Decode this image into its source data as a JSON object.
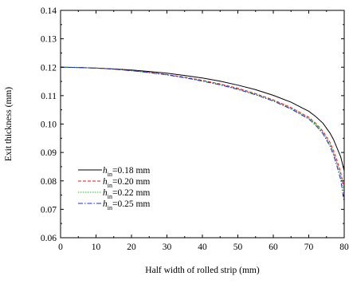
{
  "chart_data": {
    "type": "line",
    "xlabel": "Half width of rolled strip (mm)",
    "ylabel": "Exit thickness (mm)",
    "xlim": [
      0,
      80
    ],
    "ylim": [
      0.06,
      0.14
    ],
    "x_ticks": [
      "0",
      "10",
      "20",
      "30",
      "40",
      "50",
      "60",
      "70",
      "80"
    ],
    "y_ticks": [
      "0.06",
      "0.07",
      "0.08",
      "0.09",
      "0.10",
      "0.11",
      "0.12",
      "0.13",
      "0.14"
    ],
    "grid": false,
    "legend_position": "lower-left",
    "series": [
      {
        "name": "h_in=0.18 mm",
        "legend_var": "h",
        "legend_sub": "in",
        "legend_rest": "=0.18 mm",
        "color": "#000000",
        "dash": "solid",
        "x": [
          0,
          5,
          10,
          15,
          20,
          25,
          30,
          35,
          40,
          45,
          50,
          55,
          60,
          65,
          70,
          72,
          74,
          76,
          77,
          78,
          79,
          80
        ],
        "y": [
          0.12,
          0.1199,
          0.1197,
          0.1194,
          0.119,
          0.1185,
          0.1179,
          0.1171,
          0.1162,
          0.1151,
          0.1137,
          0.1121,
          0.1101,
          0.1077,
          0.1045,
          0.1026,
          0.1003,
          0.0968,
          0.0945,
          0.0915,
          0.0885,
          0.0835
        ]
      },
      {
        "name": "h_in=0.20 mm",
        "legend_var": "h",
        "legend_sub": "in",
        "legend_rest": "=0.20 mm",
        "color": "#e8161b",
        "dash": "dashed",
        "x": [
          0,
          5,
          10,
          15,
          20,
          25,
          30,
          35,
          40,
          45,
          50,
          55,
          60,
          65,
          70,
          72,
          74,
          76,
          77,
          78,
          79,
          80
        ],
        "y": [
          0.12,
          0.1199,
          0.1197,
          0.1193,
          0.1188,
          0.1182,
          0.1174,
          0.1165,
          0.1154,
          0.1141,
          0.1126,
          0.1107,
          0.1085,
          0.1058,
          0.1024,
          0.1002,
          0.0975,
          0.0935,
          0.0905,
          0.087,
          0.083,
          0.0775
        ]
      },
      {
        "name": "h_in=0.22 mm",
        "legend_var": "h",
        "legend_sub": "in",
        "legend_rest": "=0.22 mm",
        "color": "#19c419",
        "dash": "dotted",
        "x": [
          0,
          5,
          10,
          15,
          20,
          25,
          30,
          35,
          40,
          45,
          50,
          55,
          60,
          65,
          70,
          72,
          74,
          76,
          77,
          78,
          79,
          80
        ],
        "y": [
          0.12,
          0.1199,
          0.1197,
          0.1193,
          0.1188,
          0.1181,
          0.1173,
          0.1164,
          0.1152,
          0.1139,
          0.1123,
          0.1104,
          0.1082,
          0.1055,
          0.102,
          0.0998,
          0.097,
          0.0928,
          0.0898,
          0.086,
          0.0818,
          0.0755
        ]
      },
      {
        "name": "h_in=0.25 mm",
        "legend_var": "h",
        "legend_sub": "in",
        "legend_rest": "=0.25 mm",
        "color": "#2727e6",
        "dash": "dashdot",
        "x": [
          0,
          5,
          10,
          15,
          20,
          25,
          30,
          35,
          40,
          45,
          50,
          55,
          60,
          65,
          70,
          72,
          74,
          76,
          77,
          78,
          79,
          80
        ],
        "y": [
          0.12,
          0.1199,
          0.1197,
          0.1193,
          0.1188,
          0.1181,
          0.1173,
          0.1163,
          0.1151,
          0.1138,
          0.1122,
          0.1103,
          0.1081,
          0.1053,
          0.1018,
          0.0995,
          0.0966,
          0.0922,
          0.089,
          0.085,
          0.0805,
          0.0725
        ]
      }
    ]
  }
}
